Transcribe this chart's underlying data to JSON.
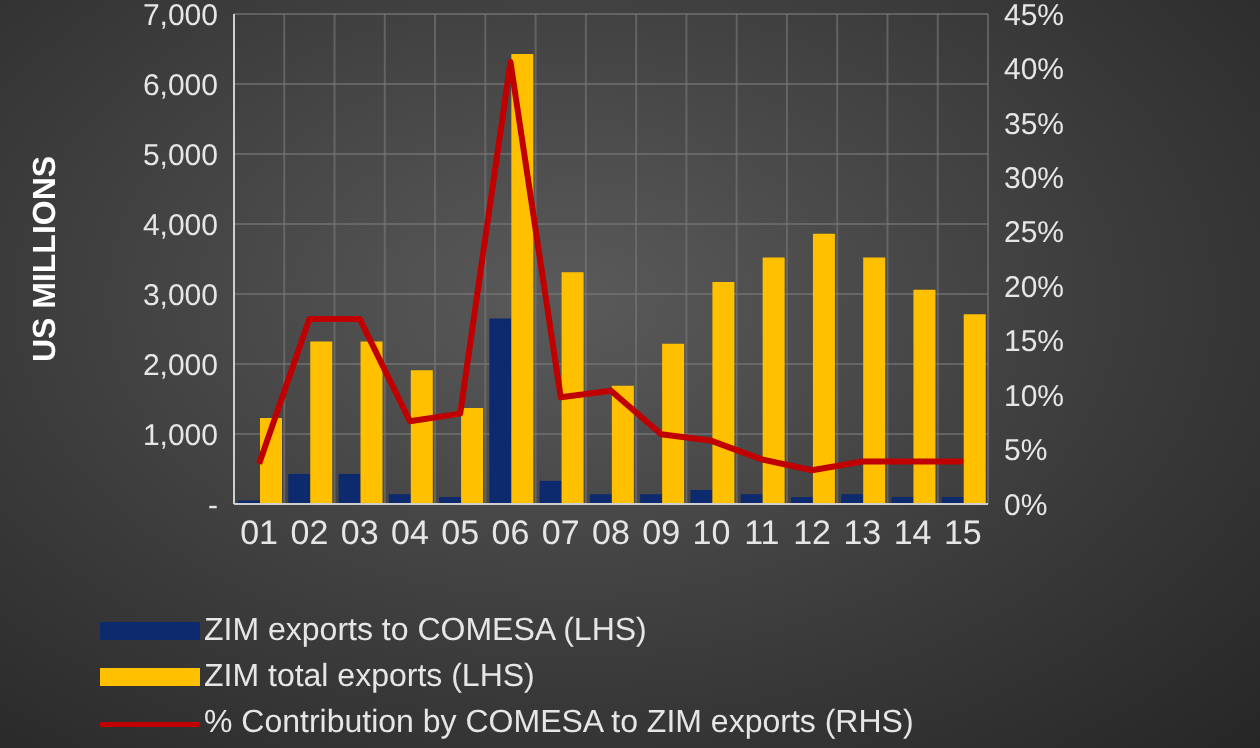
{
  "chart_data": {
    "type": "bar",
    "ylabel": "US MILLIONS",
    "categories": [
      "01",
      "02",
      "03",
      "04",
      "05",
      "06",
      "07",
      "08",
      "09",
      "10",
      "11",
      "12",
      "13",
      "14",
      "15"
    ],
    "series": [
      {
        "name": "ZIM exports to COMESA (LHS)",
        "color": "#0d2a6e",
        "values": [
          50,
          430,
          430,
          140,
          100,
          2650,
          330,
          140,
          140,
          200,
          140,
          100,
          140,
          100,
          100
        ]
      },
      {
        "name": "ZIM total exports (LHS)",
        "color": "#ffc000",
        "values": [
          1230,
          2320,
          2320,
          1910,
          1370,
          6430,
          3310,
          1690,
          2290,
          3170,
          3520,
          3860,
          3520,
          3060,
          2710
        ]
      },
      {
        "name": "% Contribution by COMESA to ZIM exports (RHS)",
        "type": "line",
        "axis": "y2",
        "color": "#c00000",
        "values": [
          3.7,
          17,
          17,
          7.6,
          8.3,
          40.6,
          9.8,
          10.4,
          6.4,
          5.8,
          4.1,
          3.1,
          3.9,
          3.9,
          3.9
        ]
      }
    ],
    "ylim": [
      0,
      7000
    ],
    "yticks": [
      {
        "value": 0,
        "label": "-"
      },
      {
        "value": 1000,
        "label": "1,000"
      },
      {
        "value": 2000,
        "label": "2,000"
      },
      {
        "value": 3000,
        "label": "3,000"
      },
      {
        "value": 4000,
        "label": "4,000"
      },
      {
        "value": 5000,
        "label": "5,000"
      },
      {
        "value": 6000,
        "label": "6,000"
      },
      {
        "value": 7000,
        "label": "7,000"
      }
    ],
    "y2lim": [
      0,
      45
    ],
    "y2ticks": [
      {
        "value": 0,
        "label": "0%"
      },
      {
        "value": 5,
        "label": "5%"
      },
      {
        "value": 10,
        "label": "10%"
      },
      {
        "value": 15,
        "label": "15%"
      },
      {
        "value": 20,
        "label": "20%"
      },
      {
        "value": 25,
        "label": "25%"
      },
      {
        "value": 30,
        "label": "30%"
      },
      {
        "value": 35,
        "label": "35%"
      },
      {
        "value": 40,
        "label": "40%"
      },
      {
        "value": 45,
        "label": "45%"
      }
    ],
    "grid": true,
    "legend": "bottom",
    "marker": "none",
    "line_style": "solid"
  }
}
